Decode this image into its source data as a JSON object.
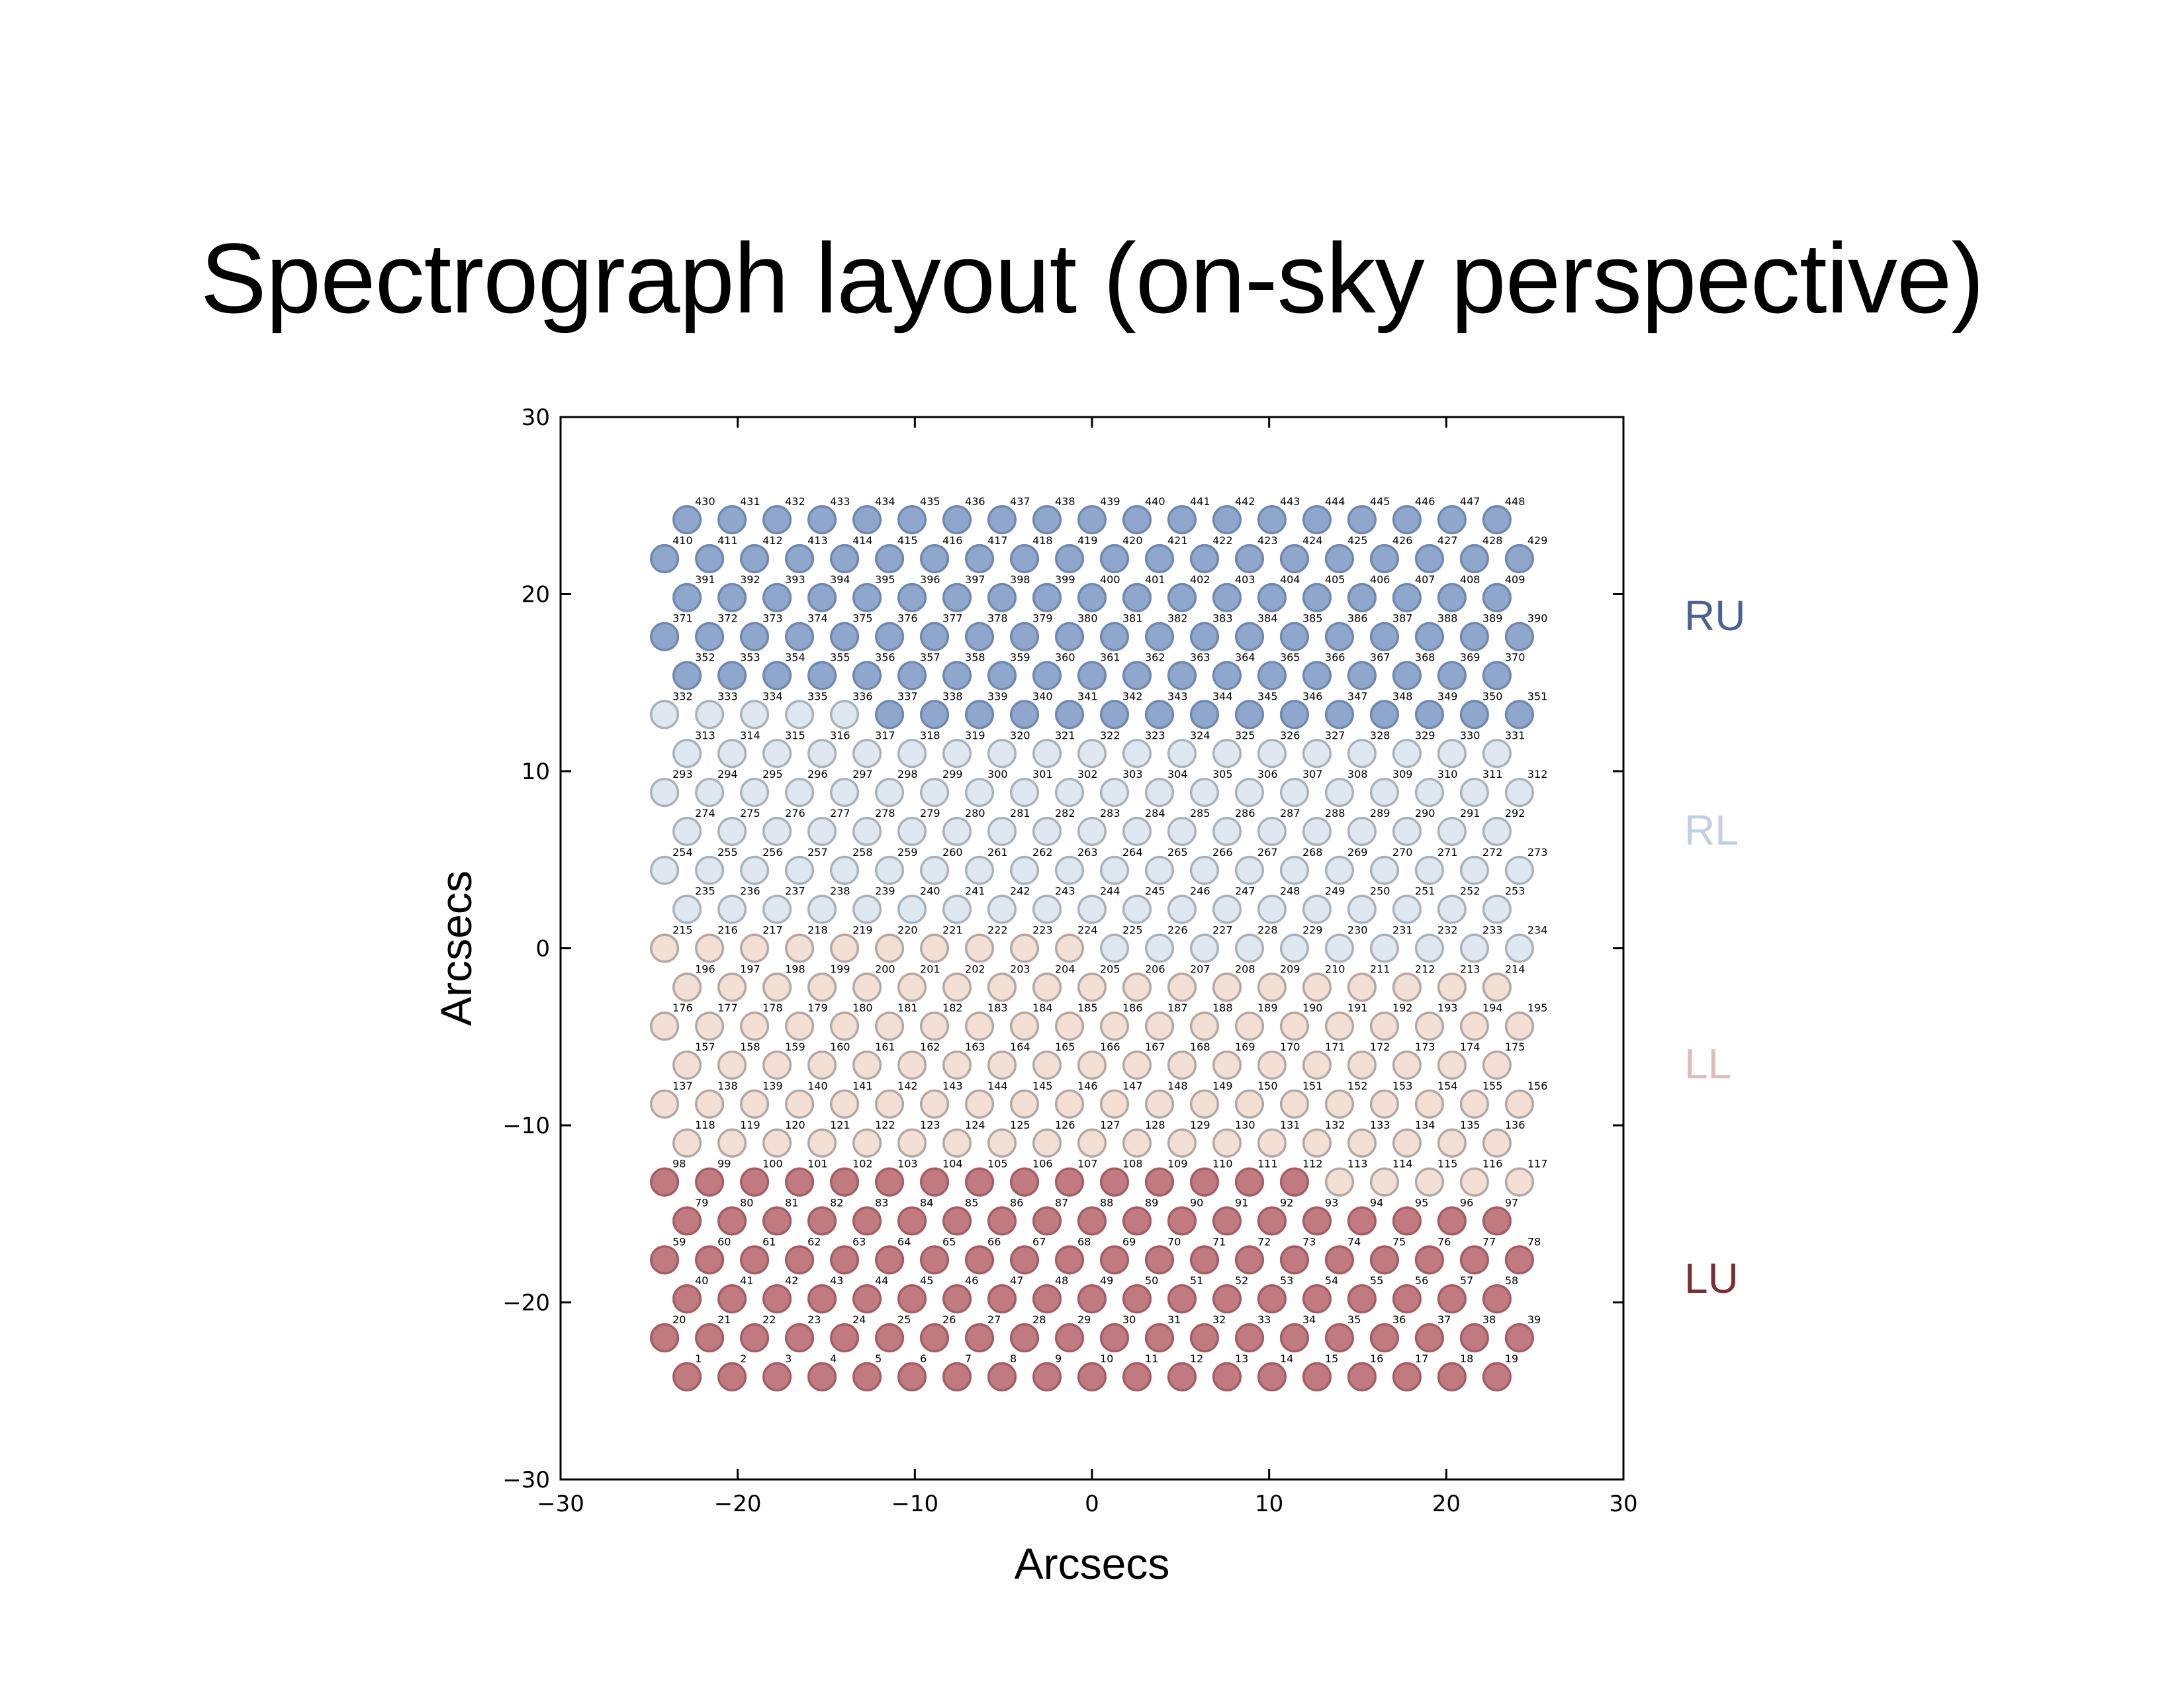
{
  "slide": {
    "title": "Spectrograph layout (on-sky perspective)"
  },
  "chart_data": {
    "type": "scatter",
    "title": "",
    "xlabel": "Arcsecs",
    "ylabel": "Arcsecs",
    "xlim": [
      -30,
      30
    ],
    "ylim": [
      -30,
      30
    ],
    "xticks": [
      -30,
      -20,
      -10,
      0,
      10,
      20,
      30
    ],
    "yticks": [
      -30,
      -20,
      -10,
      0,
      10,
      20,
      30
    ],
    "xtick_labels": [
      "−30",
      "−20",
      "−10",
      "0",
      "10",
      "20",
      "30"
    ],
    "ytick_labels": [
      "−30",
      "−20",
      "−10",
      "0",
      "10",
      "20",
      "30"
    ],
    "grid": false,
    "fiber_pitch_x": 2.54,
    "row_pitch_y": 2.2,
    "rows": [
      {
        "y": -24.2,
        "first": 1,
        "last": 19,
        "x_start": -22.86
      },
      {
        "y": -22.0,
        "first": 20,
        "last": 39,
        "x_start": -24.13
      },
      {
        "y": -19.8,
        "first": 40,
        "last": 58,
        "x_start": -22.86
      },
      {
        "y": -17.6,
        "first": 59,
        "last": 78,
        "x_start": -24.13
      },
      {
        "y": -15.4,
        "first": 79,
        "last": 97,
        "x_start": -22.86
      },
      {
        "y": -13.2,
        "first": 98,
        "last": 117,
        "x_start": -24.13
      },
      {
        "y": -11.0,
        "first": 118,
        "last": 136,
        "x_start": -22.86
      },
      {
        "y": -8.8,
        "first": 137,
        "last": 156,
        "x_start": -24.13
      },
      {
        "y": -6.6,
        "first": 157,
        "last": 175,
        "x_start": -22.86
      },
      {
        "y": -4.4,
        "first": 176,
        "last": 195,
        "x_start": -24.13
      },
      {
        "y": -2.2,
        "first": 196,
        "last": 214,
        "x_start": -22.86
      },
      {
        "y": 0.0,
        "first": 215,
        "last": 234,
        "x_start": -24.13
      },
      {
        "y": 2.2,
        "first": 235,
        "last": 253,
        "x_start": -22.86
      },
      {
        "y": 4.4,
        "first": 254,
        "last": 273,
        "x_start": -24.13
      },
      {
        "y": 6.6,
        "first": 274,
        "last": 292,
        "x_start": -22.86
      },
      {
        "y": 8.8,
        "first": 293,
        "last": 312,
        "x_start": -24.13
      },
      {
        "y": 11.0,
        "first": 313,
        "last": 331,
        "x_start": -22.86
      },
      {
        "y": 13.2,
        "first": 332,
        "last": 351,
        "x_start": -24.13
      },
      {
        "y": 15.4,
        "first": 352,
        "last": 370,
        "x_start": -22.86
      },
      {
        "y": 17.6,
        "first": 371,
        "last": 390,
        "x_start": -24.13
      },
      {
        "y": 19.8,
        "first": 391,
        "last": 409,
        "x_start": -22.86
      },
      {
        "y": 22.0,
        "first": 410,
        "last": 429,
        "x_start": -24.13
      },
      {
        "y": 24.2,
        "first": 430,
        "last": 448,
        "x_start": -22.86
      }
    ],
    "groups": [
      {
        "name": "LU",
        "first": 1,
        "last": 112,
        "fill": "#c07a80",
        "stroke": "#a55d64",
        "label_color": "#7a2e36"
      },
      {
        "name": "LL",
        "first": 113,
        "last": 224,
        "fill": "#f4dfd4",
        "stroke": "#b3a8a3",
        "label_color": "#dfbcbc"
      },
      {
        "name": "RL",
        "first": 225,
        "last": 336,
        "fill": "#dfe8f1",
        "stroke": "#a9b2bb",
        "label_color": "#c2cfe3"
      },
      {
        "name": "RU",
        "first": 337,
        "last": 448,
        "fill": "#8fa7cc",
        "stroke": "#7088b0",
        "label_color": "#4a6293"
      }
    ]
  }
}
